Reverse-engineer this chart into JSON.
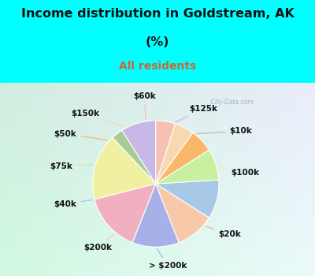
{
  "title_line1": "Income distribution in Goldstream, AK",
  "title_line2": "(%)",
  "subtitle": "All residents",
  "title_color": "#111111",
  "subtitle_color": "#cc6633",
  "bg_color": "#00ffff",
  "chart_bg": "#ddf0e8",
  "labels": [
    "$125k",
    "$10k",
    "$100k",
    "$20k",
    "> $200k",
    "$200k",
    "$40k",
    "$75k",
    "$50k",
    "$150k",
    "$60k"
  ],
  "values": [
    9,
    3,
    17,
    15,
    12,
    10,
    10,
    8,
    6,
    5,
    5
  ],
  "colors": [
    "#c8b8e8",
    "#a8cc98",
    "#f0f0a0",
    "#f0b0c0",
    "#a8b0e8",
    "#f8c8a8",
    "#a8c8e8",
    "#c8f0a0",
    "#f8b868",
    "#f8d8b0",
    "#f8c0b0"
  ],
  "watermark": " City-Data.com",
  "label_fontsize": 7.5
}
